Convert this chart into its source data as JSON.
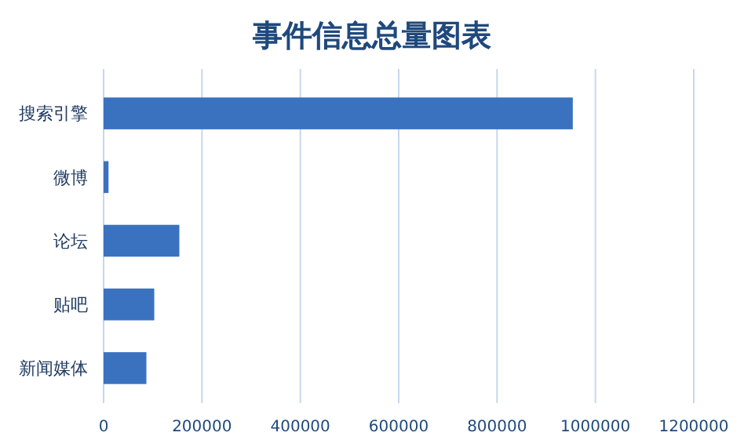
{
  "chart_data": {
    "type": "bar",
    "orientation": "horizontal",
    "title": "事件信息总量图表",
    "categories": [
      "搜索引擎",
      "微博",
      "论坛",
      "贴吧",
      "新闻媒体"
    ],
    "values": [
      954000,
      10000,
      154000,
      103000,
      87000
    ],
    "color": "#3a72bf",
    "xlim": [
      0,
      1200000
    ],
    "xticks": [
      0,
      200000,
      400000,
      600000,
      800000,
      1000000,
      1200000
    ],
    "grid": "x"
  }
}
